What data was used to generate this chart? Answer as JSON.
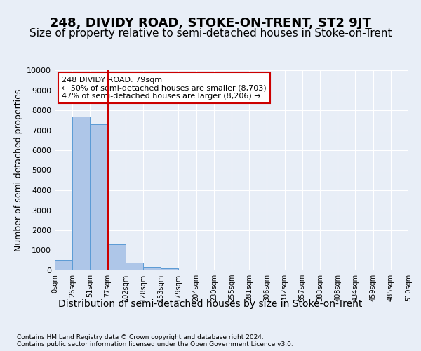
{
  "title": "248, DIVIDY ROAD, STOKE-ON-TRENT, ST2 9JT",
  "subtitle": "Size of property relative to semi-detached houses in Stoke-on-Trent",
  "xlabel": "Distribution of semi-detached houses by size in Stoke-on-Trent",
  "ylabel": "Number of semi-detached properties",
  "footer": "Contains HM Land Registry data © Crown copyright and database right 2024.\nContains public sector information licensed under the Open Government Licence v3.0.",
  "bin_labels": [
    "0sqm",
    "26sqm",
    "51sqm",
    "77sqm",
    "102sqm",
    "128sqm",
    "153sqm",
    "179sqm",
    "204sqm",
    "230sqm",
    "255sqm",
    "281sqm",
    "306sqm",
    "332sqm",
    "357sqm",
    "383sqm",
    "408sqm",
    "434sqm",
    "459sqm",
    "485sqm",
    "510sqm"
  ],
  "bar_values": [
    500,
    7700,
    7300,
    1300,
    400,
    150,
    100,
    50,
    0,
    0,
    0,
    0,
    0,
    0,
    0,
    0,
    0,
    0,
    0,
    0
  ],
  "bar_color": "#aec6e8",
  "bar_edge_color": "#5b9bd5",
  "vline_x": 2.5,
  "vline_color": "#cc0000",
  "annotation_text": "248 DIVIDY ROAD: 79sqm\n← 50% of semi-detached houses are smaller (8,703)\n47% of semi-detached houses are larger (8,206) →",
  "annotation_box_color": "#ffffff",
  "annotation_box_edge": "#cc0000",
  "ylim": [
    0,
    10000
  ],
  "yticks": [
    0,
    1000,
    2000,
    3000,
    4000,
    5000,
    6000,
    7000,
    8000,
    9000,
    10000
  ],
  "background_color": "#e8eef7",
  "plot_bg_color": "#e8eef7",
  "grid_color": "#ffffff",
  "title_fontsize": 13,
  "subtitle_fontsize": 11,
  "xlabel_fontsize": 10,
  "ylabel_fontsize": 9
}
